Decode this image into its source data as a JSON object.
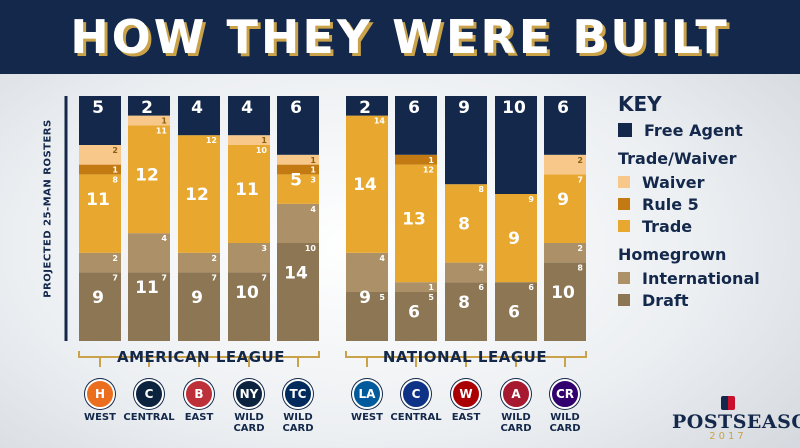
{
  "title": "HOW THEY WERE BUILT",
  "chart_data": {
    "type": "bar",
    "stacked": true,
    "ylabel": "PROJECTED 25-MAN ROSTERS",
    "ylim": [
      0,
      25
    ],
    "categories": [
      "WEST",
      "CENTRAL",
      "EAST",
      "WILD CARD",
      "WILD CARD",
      "WEST",
      "CENTRAL",
      "EAST",
      "WILD CARD",
      "WILD CARD"
    ],
    "leagues": [
      {
        "name": "AMERICAN LEAGUE",
        "start": 0,
        "end": 4
      },
      {
        "name": "NATIONAL LEAGUE",
        "start": 5,
        "end": 9
      }
    ],
    "series": [
      {
        "name": "Draft",
        "color": "#8d7653",
        "values": [
          7,
          7,
          7,
          7,
          10,
          5,
          5,
          6,
          6,
          8
        ]
      },
      {
        "name": "International",
        "color": "#ab9068",
        "values": [
          2,
          4,
          2,
          3,
          4,
          4,
          1,
          2,
          0,
          2
        ]
      },
      {
        "name": "Trade",
        "color": "#e8a72e",
        "values": [
          8,
          11,
          12,
          10,
          3,
          14,
          12,
          8,
          9,
          7
        ]
      },
      {
        "name": "Rule 5",
        "color": "#c47a12",
        "values": [
          1,
          0,
          0,
          0,
          1,
          0,
          1,
          0,
          0,
          0
        ]
      },
      {
        "name": "Waiver",
        "color": "#f8c88a",
        "values": [
          2,
          1,
          0,
          1,
          1,
          0,
          0,
          0,
          0,
          2
        ]
      },
      {
        "name": "Free Agent",
        "color": "#13284a",
        "values": [
          5,
          2,
          4,
          4,
          6,
          2,
          6,
          9,
          10,
          6
        ]
      }
    ],
    "group_labels": [
      {
        "name": "Homegrown",
        "totals": [
          9,
          11,
          9,
          10,
          14,
          9,
          6,
          8,
          6,
          10
        ]
      },
      {
        "name": "Trade/Waiver",
        "totals": [
          11,
          12,
          12,
          11,
          5,
          14,
          13,
          8,
          9,
          9
        ]
      },
      {
        "name": "Free Agent",
        "totals": [
          5,
          2,
          4,
          4,
          6,
          2,
          6,
          9,
          10,
          6
        ]
      }
    ]
  },
  "key": {
    "title": "KEY",
    "free_agent": {
      "label": "Free Agent",
      "color": "#13284a"
    },
    "trade_waiver_title": "Trade/Waiver",
    "waiver": {
      "label": "Waiver",
      "color": "#f8c88a"
    },
    "rule5": {
      "label": "Rule 5",
      "color": "#c47a12"
    },
    "trade": {
      "label": "Trade",
      "color": "#e8a72e"
    },
    "homegrown_title": "Homegrown",
    "international": {
      "label": "International",
      "color": "#ab9068"
    },
    "draft": {
      "label": "Draft",
      "color": "#8d7653"
    }
  },
  "teams": [
    {
      "logo": "H",
      "color": "#eb6e1f"
    },
    {
      "logo": "C",
      "color": "#0c2340"
    },
    {
      "logo": "B",
      "color": "#bd3039"
    },
    {
      "logo": "NY",
      "color": "#0c2340"
    },
    {
      "logo": "TC",
      "color": "#002b5c"
    },
    {
      "logo": "LA",
      "color": "#005a9c"
    },
    {
      "logo": "C",
      "color": "#0e3386"
    },
    {
      "logo": "W",
      "color": "#ab0003"
    },
    {
      "logo": "A",
      "color": "#a71930"
    },
    {
      "logo": "CR",
      "color": "#33006f"
    }
  ],
  "brand": {
    "name": "POSTSEASON",
    "year": "2017"
  }
}
